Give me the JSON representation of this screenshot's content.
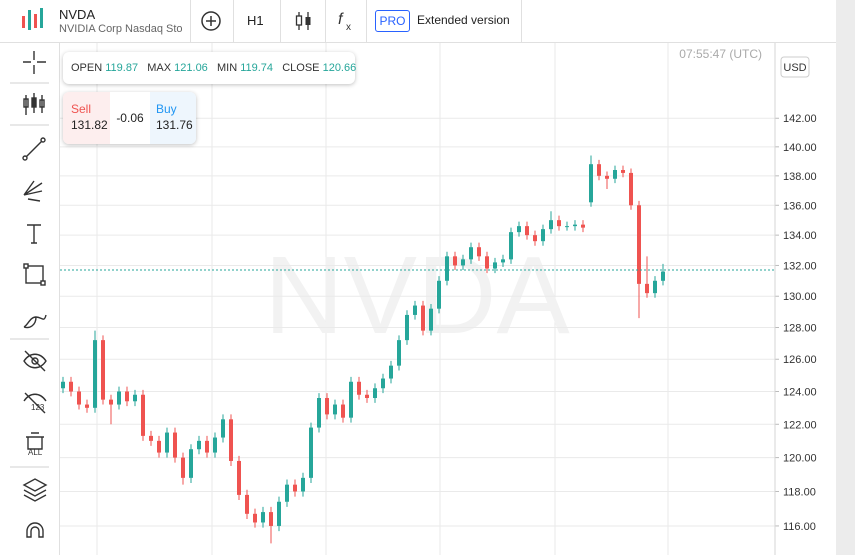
{
  "header": {
    "symbol": "NVDA",
    "description": "NVIDIA Corp Nasdaq Sto"
  },
  "toolbar": {
    "interval": "H1",
    "pro": "PRO",
    "extended": "Extended version"
  },
  "ohlc": {
    "open_label": "OPEN",
    "open": 119.87,
    "max_label": "MAX",
    "max": 121.06,
    "min_label": "MIN",
    "min": 119.74,
    "close_label": "CLOSE",
    "close": 120.66
  },
  "quote": {
    "sell_label": "Sell",
    "sell": 131.82,
    "change": -0.06,
    "buy_label": "Buy",
    "buy": 131.76
  },
  "chart_data": {
    "type": "candlestick",
    "watermark": "NVDA",
    "time": "07:55:47 (UTC)",
    "currency": "USD",
    "log_scale": true,
    "grid": true,
    "up_color": "#26a69a",
    "down_color": "#ef5350",
    "price_line": 131.7,
    "price_line_color": "#26a69a",
    "ylim": [
      114.34,
      147.4
    ],
    "yticks": [
      {
        "value": 116,
        "label": "116.00"
      },
      {
        "value": 118,
        "label": "118.00"
      },
      {
        "value": 120,
        "label": "120.00"
      },
      {
        "value": 122,
        "label": "122.00"
      },
      {
        "value": 124,
        "label": "124.00"
      },
      {
        "value": 126,
        "label": "126.00"
      },
      {
        "value": 128,
        "label": "128.00"
      },
      {
        "value": 130,
        "label": "130.00"
      },
      {
        "value": 132,
        "label": "132.00"
      },
      {
        "value": 134,
        "label": "134.00"
      },
      {
        "value": 136,
        "label": "136.00"
      },
      {
        "value": 138,
        "label": "138.00"
      },
      {
        "value": 140,
        "label": "140.00"
      },
      {
        "value": 142,
        "label": "142.00"
      }
    ],
    "open": [
      124.2,
      124.6,
      124.0,
      123.2,
      123.0,
      127.2,
      123.5,
      123.2,
      124.0,
      123.4,
      123.8,
      121.3,
      121.0,
      120.3,
      121.5,
      120.0,
      118.8,
      120.5,
      121.0,
      120.3,
      121.2,
      122.3,
      119.8,
      117.8,
      116.7,
      116.2,
      116.8,
      116.0,
      117.4,
      118.4,
      118.0,
      118.8,
      121.8,
      123.6,
      122.6,
      123.2,
      122.4,
      124.6,
      123.8,
      123.6,
      124.2,
      124.8,
      125.6,
      127.2,
      128.8,
      129.4,
      127.8,
      129.2,
      131.0,
      132.6,
      132.0,
      132.4,
      133.2,
      132.6,
      131.8,
      132.2,
      132.4,
      134.2,
      134.6,
      134.0,
      133.6,
      134.4,
      135.0,
      134.6,
      134.6,
      134.7,
      136.2,
      138.8,
      138.0,
      137.8,
      138.4,
      138.2,
      136.0,
      130.8,
      130.2,
      131.0
    ],
    "high": [
      124.9,
      124.9,
      124.3,
      123.5,
      127.8,
      127.5,
      123.8,
      124.3,
      124.3,
      124.1,
      124.1,
      121.6,
      121.3,
      121.8,
      121.8,
      120.3,
      120.8,
      121.3,
      121.3,
      121.5,
      122.6,
      122.6,
      120.1,
      118.1,
      117.0,
      117.1,
      117.1,
      117.7,
      118.7,
      118.7,
      119.1,
      122.1,
      123.9,
      123.9,
      123.5,
      123.5,
      124.9,
      124.9,
      124.1,
      124.5,
      125.1,
      125.9,
      127.5,
      129.1,
      129.7,
      129.7,
      129.5,
      131.3,
      132.9,
      132.9,
      132.7,
      133.5,
      133.5,
      132.9,
      132.5,
      132.7,
      134.5,
      134.9,
      134.9,
      134.3,
      134.7,
      135.6,
      135.3,
      134.9,
      135.0,
      135.0,
      139.4,
      139.1,
      138.3,
      138.7,
      138.7,
      138.5,
      136.3,
      132.6,
      131.3,
      132.1
    ],
    "low": [
      123.9,
      123.7,
      122.9,
      122.7,
      122.7,
      123.2,
      122.0,
      122.9,
      123.1,
      123.1,
      121.0,
      120.7,
      120.0,
      120.0,
      119.7,
      118.4,
      118.5,
      120.2,
      120.0,
      120.0,
      120.9,
      119.5,
      117.5,
      116.4,
      115.9,
      115.9,
      115.0,
      115.7,
      117.1,
      117.7,
      117.7,
      118.5,
      121.5,
      122.3,
      122.3,
      122.1,
      122.1,
      123.5,
      123.3,
      123.3,
      123.9,
      124.5,
      125.3,
      126.9,
      128.5,
      127.5,
      127.5,
      128.9,
      130.7,
      131.7,
      131.7,
      132.1,
      132.3,
      131.5,
      131.5,
      131.9,
      132.1,
      133.9,
      133.7,
      133.3,
      133.3,
      134.1,
      134.3,
      134.3,
      134.3,
      134.2,
      135.9,
      137.7,
      137.1,
      137.5,
      137.9,
      135.7,
      128.6,
      129.9,
      129.9,
      130.7
    ],
    "close": [
      124.6,
      124.0,
      123.2,
      123.0,
      127.2,
      123.5,
      123.2,
      124.0,
      123.4,
      123.8,
      121.3,
      121.0,
      120.3,
      121.5,
      120.0,
      118.8,
      120.5,
      121.0,
      120.3,
      121.2,
      122.3,
      119.8,
      117.8,
      116.7,
      116.2,
      116.8,
      116.0,
      117.4,
      118.4,
      118.0,
      118.8,
      121.8,
      123.6,
      122.6,
      123.2,
      122.4,
      124.6,
      123.8,
      123.6,
      124.2,
      124.8,
      125.6,
      127.2,
      128.8,
      129.4,
      127.8,
      129.2,
      131.0,
      132.6,
      132.0,
      132.4,
      133.2,
      132.6,
      131.8,
      132.2,
      132.4,
      134.2,
      134.6,
      134.0,
      133.6,
      134.4,
      135.0,
      134.6,
      134.6,
      134.7,
      134.5,
      138.8,
      138.0,
      137.8,
      138.4,
      138.2,
      136.0,
      130.8,
      130.2,
      131.0,
      131.6
    ]
  }
}
